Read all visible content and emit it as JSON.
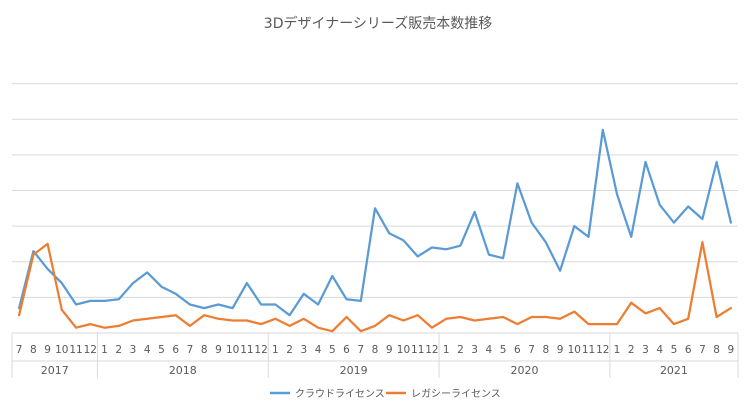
{
  "chart_data": {
    "type": "line",
    "title": "3Dデザイナーシリーズ販売本数推移",
    "xlabel": "",
    "ylabel": "",
    "ylim": [
      0,
      80
    ],
    "grid": true,
    "legend_position": "bottom",
    "x": [
      "7",
      "8",
      "9",
      "10",
      "11",
      "12",
      "1",
      "2",
      "3",
      "4",
      "5",
      "6",
      "7",
      "8",
      "9",
      "10",
      "11",
      "12",
      "1",
      "2",
      "3",
      "4",
      "5",
      "6",
      "7",
      "8",
      "9",
      "10",
      "11",
      "12",
      "1",
      "2",
      "3",
      "4",
      "5",
      "6",
      "7",
      "8",
      "9",
      "10",
      "11",
      "12",
      "1",
      "2",
      "3",
      "4",
      "5",
      "6",
      "7",
      "8",
      "9"
    ],
    "years": [
      {
        "label": "2017",
        "count": 6
      },
      {
        "label": "2018",
        "count": 12
      },
      {
        "label": "2019",
        "count": 12
      },
      {
        "label": "2020",
        "count": 12
      },
      {
        "label": "2021",
        "count": 9
      }
    ],
    "series": [
      {
        "name": "クラウドライセンス",
        "color": "#5B9BD5",
        "values": [
          7,
          23,
          18,
          14,
          8,
          9,
          9,
          9.5,
          14,
          17,
          13,
          11,
          8,
          7,
          8,
          7,
          14,
          8,
          8,
          5,
          11,
          8,
          16,
          9.5,
          9,
          35,
          28,
          26,
          21.5,
          24,
          23.5,
          24.5,
          34,
          22,
          21,
          42,
          31,
          25.5,
          17.5,
          30,
          27,
          57,
          39,
          27,
          48,
          36,
          31,
          35.5,
          32,
          48,
          31
        ]
      },
      {
        "name": "レガシーライセンス",
        "color": "#ED7D31",
        "values": [
          5,
          22,
          25,
          6.5,
          1.5,
          2.5,
          1.5,
          2,
          3.5,
          4,
          4.5,
          5,
          2,
          5,
          4,
          3.5,
          3.5,
          2.5,
          4,
          2,
          4,
          1.5,
          0.5,
          4.5,
          0.5,
          2,
          5,
          3.5,
          5,
          1.5,
          4,
          4.5,
          3.5,
          4,
          4.5,
          2.5,
          4.5,
          4.5,
          4,
          6,
          2.5,
          2.5,
          2.5,
          8.5,
          5.5,
          7,
          2.5,
          4,
          25.5,
          4.5,
          7
        ]
      }
    ]
  }
}
